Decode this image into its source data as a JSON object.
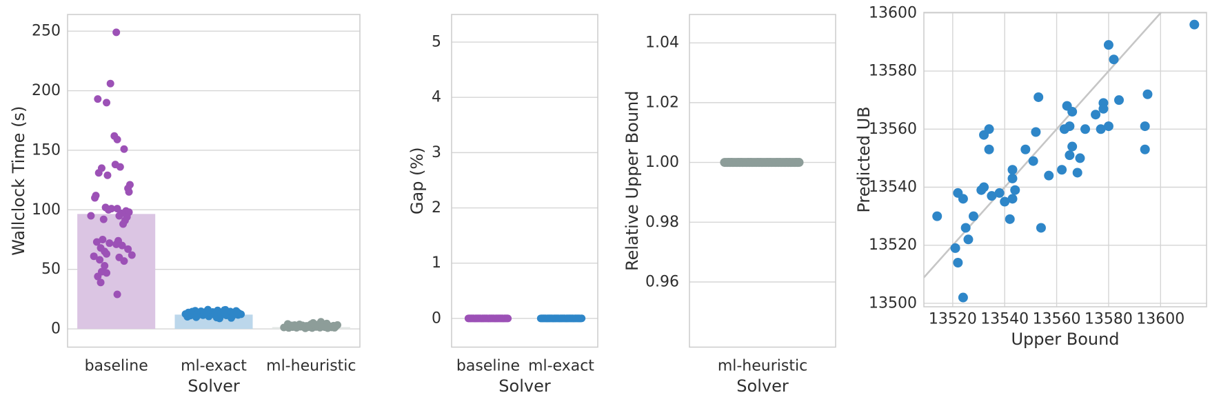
{
  "figure": {
    "background": "#ffffff"
  },
  "colors": {
    "purple_point": "#9C51B6",
    "purple_bar": "#DBC5E3",
    "blue_point": "#2E86C8",
    "blue_bar": "#BCD7EB",
    "gray_point": "#8D9D99",
    "gray_bar": "#E3E7E5",
    "grid": "#D5D5D5",
    "spine": "#CBCBCB",
    "text": "#2E2E2E",
    "refline": "#C6C6C6"
  },
  "chart_data": [
    {
      "type": "bar",
      "subtype": "strip-over-bar",
      "title": "",
      "xlabel": "Solver",
      "ylabel": "Wallclock Time (s)",
      "categories": [
        "baseline",
        "ml-exact",
        "ml-heuristic"
      ],
      "values": [
        96.5,
        12,
        1.5
      ],
      "yticks": [
        0,
        50,
        100,
        150,
        200,
        250
      ],
      "ytick_labels": [
        "0",
        "50",
        "100",
        "150",
        "200",
        "250"
      ],
      "ylim": [
        -15.3,
        264
      ],
      "grid": "horizontal",
      "legend": "none",
      "series": [
        {
          "name": "baseline",
          "point_color": "#9C51B6",
          "bar_color": "#DBC5E3",
          "points": [
            [
              0.0,
              249
            ],
            [
              -0.06,
              206
            ],
            [
              -0.19,
              193
            ],
            [
              -0.1,
              190
            ],
            [
              -0.02,
              162
            ],
            [
              0.01,
              159
            ],
            [
              0.08,
              151
            ],
            [
              -0.01,
              138
            ],
            [
              0.04,
              136
            ],
            [
              -0.15,
              135
            ],
            [
              -0.18,
              131
            ],
            [
              -0.09,
              129
            ],
            [
              0.14,
              121
            ],
            [
              0.12,
              118
            ],
            [
              0.13,
              115
            ],
            [
              -0.21,
              112
            ],
            [
              -0.22,
              110
            ],
            [
              -0.11,
              102
            ],
            [
              -0.05,
              101
            ],
            [
              0.01,
              101
            ],
            [
              -0.08,
              100
            ],
            [
              0.1,
              99
            ],
            [
              0.13,
              98
            ],
            [
              0.05,
              97
            ],
            [
              -0.26,
              95
            ],
            [
              0.03,
              95
            ],
            [
              0.11,
              94
            ],
            [
              -0.13,
              92
            ],
            [
              0.09,
              91
            ],
            [
              0.07,
              88
            ],
            [
              -0.14,
              75
            ],
            [
              0.02,
              74
            ],
            [
              -0.2,
              73
            ],
            [
              -0.07,
              72
            ],
            [
              0.0,
              71
            ],
            [
              0.06,
              70
            ],
            [
              -0.16,
              68
            ],
            [
              0.12,
              67
            ],
            [
              -0.12,
              65
            ],
            [
              -0.1,
              63
            ],
            [
              0.16,
              62
            ],
            [
              -0.23,
              61
            ],
            [
              0.03,
              60
            ],
            [
              -0.17,
              58
            ],
            [
              0.08,
              57
            ],
            [
              -0.12,
              53
            ],
            [
              -0.15,
              48
            ],
            [
              -0.1,
              47
            ],
            [
              -0.19,
              44
            ],
            [
              -0.16,
              39
            ],
            [
              0.01,
              29
            ]
          ]
        },
        {
          "name": "ml-exact",
          "point_color": "#2E86C8",
          "bar_color": "#BCD7EB",
          "points": [
            [
              -0.29,
              12.5
            ],
            [
              -0.26,
              13.8
            ],
            [
              -0.24,
              11.2
            ],
            [
              -0.22,
              14.5
            ],
            [
              -0.2,
              12.0
            ],
            [
              -0.19,
              15.2
            ],
            [
              -0.17,
              10.8
            ],
            [
              -0.16,
              13.2
            ],
            [
              -0.14,
              12.6
            ],
            [
              -0.13,
              14.8
            ],
            [
              -0.11,
              11.5
            ],
            [
              -0.1,
              13.9
            ],
            [
              -0.08,
              12.2
            ],
            [
              -0.07,
              15.0
            ],
            [
              -0.05,
              10.5
            ],
            [
              -0.04,
              13.5
            ],
            [
              -0.02,
              12.8
            ],
            [
              -0.01,
              14.2
            ],
            [
              0.01,
              11.8
            ],
            [
              0.02,
              13.0
            ],
            [
              0.04,
              15.5
            ],
            [
              0.05,
              12.4
            ],
            [
              0.07,
              10.9
            ],
            [
              0.08,
              14.0
            ],
            [
              0.1,
              12.9
            ],
            [
              0.11,
              15.8
            ],
            [
              0.13,
              11.3
            ],
            [
              0.14,
              13.6
            ],
            [
              0.16,
              12.1
            ],
            [
              0.17,
              14.6
            ],
            [
              0.19,
              10.6
            ],
            [
              0.2,
              13.3
            ],
            [
              0.22,
              12.7
            ],
            [
              0.23,
              15.1
            ],
            [
              0.25,
              11.7
            ],
            [
              0.26,
              13.1
            ],
            [
              0.28,
              12.3
            ],
            [
              0.12,
              16.0
            ],
            [
              -0.18,
              9.8
            ],
            [
              0.03,
              9.5
            ],
            [
              -0.06,
              16.2
            ],
            [
              0.18,
              9.2
            ],
            [
              -0.27,
              10.2
            ],
            [
              0.24,
              14.3
            ],
            [
              0.06,
              8.8
            ]
          ]
        },
        {
          "name": "ml-heuristic",
          "point_color": "#8D9D99",
          "bar_color": "#E3E7E5",
          "points": [
            [
              -0.28,
              1.2
            ],
            [
              -0.25,
              2.1
            ],
            [
              -0.23,
              0.8
            ],
            [
              -0.21,
              2.8
            ],
            [
              -0.19,
              1.5
            ],
            [
              -0.17,
              3.2
            ],
            [
              -0.15,
              0.9
            ],
            [
              -0.13,
              2.4
            ],
            [
              -0.11,
              1.8
            ],
            [
              -0.09,
              3.0
            ],
            [
              -0.07,
              1.1
            ],
            [
              -0.05,
              2.6
            ],
            [
              -0.03,
              1.4
            ],
            [
              -0.01,
              3.4
            ],
            [
              0.01,
              0.7
            ],
            [
              0.03,
              2.2
            ],
            [
              0.05,
              1.6
            ],
            [
              0.07,
              2.9
            ],
            [
              0.09,
              1.0
            ],
            [
              0.11,
              2.5
            ],
            [
              0.13,
              1.9
            ],
            [
              0.15,
              3.1
            ],
            [
              0.17,
              0.6
            ],
            [
              0.19,
              2.3
            ],
            [
              0.21,
              1.3
            ],
            [
              0.23,
              2.7
            ],
            [
              0.25,
              1.7
            ],
            [
              0.27,
              3.3
            ],
            [
              -0.24,
              4.2
            ],
            [
              0.1,
              6.0
            ],
            [
              0.16,
              4.5
            ],
            [
              -0.12,
              3.8
            ],
            [
              0.0,
              4.0
            ],
            [
              0.22,
              2.0
            ],
            [
              -0.06,
              0.5
            ],
            [
              0.14,
              1.45
            ],
            [
              -0.2,
              2.95
            ],
            [
              0.06,
              3.6
            ],
            [
              -0.02,
              2.05
            ],
            [
              0.24,
              0.95
            ],
            [
              -0.16,
              1.65
            ],
            [
              0.02,
              5.0
            ]
          ]
        }
      ]
    },
    {
      "type": "scatter",
      "subtype": "strip",
      "title": "",
      "xlabel": "Solver",
      "ylabel": "Gap (%)",
      "categories": [
        "baseline",
        "ml-exact"
      ],
      "yticks": [
        0,
        1,
        2,
        3,
        4,
        5
      ],
      "ytick_labels": [
        "0",
        "1",
        "2",
        "3",
        "4",
        "5"
      ],
      "ylim": [
        -0.52,
        5.5
      ],
      "grid": "horizontal",
      "legend": "none",
      "series": [
        {
          "name": "baseline",
          "point_color": "#9C51B6",
          "points_uniform": {
            "n": 42,
            "dx_min": -0.27,
            "dx_max": 0.27,
            "value": 0.0
          }
        },
        {
          "name": "ml-exact",
          "point_color": "#2E86C8",
          "points_uniform": {
            "n": 46,
            "dx_min": -0.28,
            "dx_max": 0.28,
            "value": 0.0
          }
        }
      ]
    },
    {
      "type": "scatter",
      "subtype": "strip",
      "title": "",
      "xlabel": "Solver",
      "ylabel": "Relative Upper Bound",
      "categories": [
        "ml-heuristic"
      ],
      "yticks": [
        0.96,
        0.98,
        1.0,
        1.02,
        1.04
      ],
      "ytick_labels": [
        "0.96",
        "0.98",
        "1.00",
        "1.02",
        "1.04"
      ],
      "ylim": [
        0.9382,
        1.0495
      ],
      "grid": "horizontal",
      "legend": "none",
      "series": [
        {
          "name": "ml-heuristic",
          "point_color": "#8D9D99",
          "points_uniform": {
            "n": 55,
            "dx_min": -0.26,
            "dx_max": 0.25,
            "value": 1.0
          }
        }
      ]
    },
    {
      "type": "scatter",
      "subtype": "xy",
      "title": "",
      "xlabel": "Upper Bound",
      "ylabel": "Predicted UB",
      "xticks": [
        13520,
        13540,
        13560,
        13580,
        13600
      ],
      "xtick_labels": [
        "13520",
        "13540",
        "13560",
        "13580",
        "13600"
      ],
      "yticks": [
        13500,
        13520,
        13540,
        13560,
        13580,
        13600
      ],
      "ytick_labels": [
        "13500",
        "13520",
        "13540",
        "13560",
        "13580",
        "13600"
      ],
      "xlim": [
        13508.9,
        13617.7
      ],
      "ylim": [
        13498.8,
        13600.2
      ],
      "grid": "both",
      "legend": "none",
      "point_color": "#2E86C8",
      "identity_line": {
        "type": "y=x",
        "from": 13508.9,
        "to": 13600.2,
        "color": "#C6C6C6"
      },
      "points": [
        [
          13613,
          13596
        ],
        [
          13580,
          13589
        ],
        [
          13582,
          13584
        ],
        [
          13595,
          13572
        ],
        [
          13553,
          13571
        ],
        [
          13584,
          13570
        ],
        [
          13564,
          13568
        ],
        [
          13578,
          13569
        ],
        [
          13578,
          13567
        ],
        [
          13566,
          13566
        ],
        [
          13575,
          13565
        ],
        [
          13534,
          13560
        ],
        [
          13532,
          13558
        ],
        [
          13552,
          13559
        ],
        [
          13565,
          13561
        ],
        [
          13563,
          13560
        ],
        [
          13571,
          13560
        ],
        [
          13580,
          13561
        ],
        [
          13577,
          13560
        ],
        [
          13594,
          13561
        ],
        [
          13534,
          13553
        ],
        [
          13548,
          13553
        ],
        [
          13566,
          13554
        ],
        [
          13565,
          13551
        ],
        [
          13569,
          13550
        ],
        [
          13594,
          13553
        ],
        [
          13551,
          13549
        ],
        [
          13557,
          13544
        ],
        [
          13562,
          13546
        ],
        [
          13568,
          13545
        ],
        [
          13543,
          13546
        ],
        [
          13543,
          13543
        ],
        [
          13544,
          13539
        ],
        [
          13532,
          13540
        ],
        [
          13531,
          13539
        ],
        [
          13522,
          13538
        ],
        [
          13535,
          13537
        ],
        [
          13538,
          13538
        ],
        [
          13540,
          13535
        ],
        [
          13543,
          13536
        ],
        [
          13524,
          13536
        ],
        [
          13514,
          13530
        ],
        [
          13528,
          13530
        ],
        [
          13542,
          13529
        ],
        [
          13525,
          13526
        ],
        [
          13554,
          13526
        ],
        [
          13526,
          13522
        ],
        [
          13521,
          13519
        ],
        [
          13522,
          13514
        ],
        [
          13524,
          13502
        ]
      ]
    }
  ]
}
